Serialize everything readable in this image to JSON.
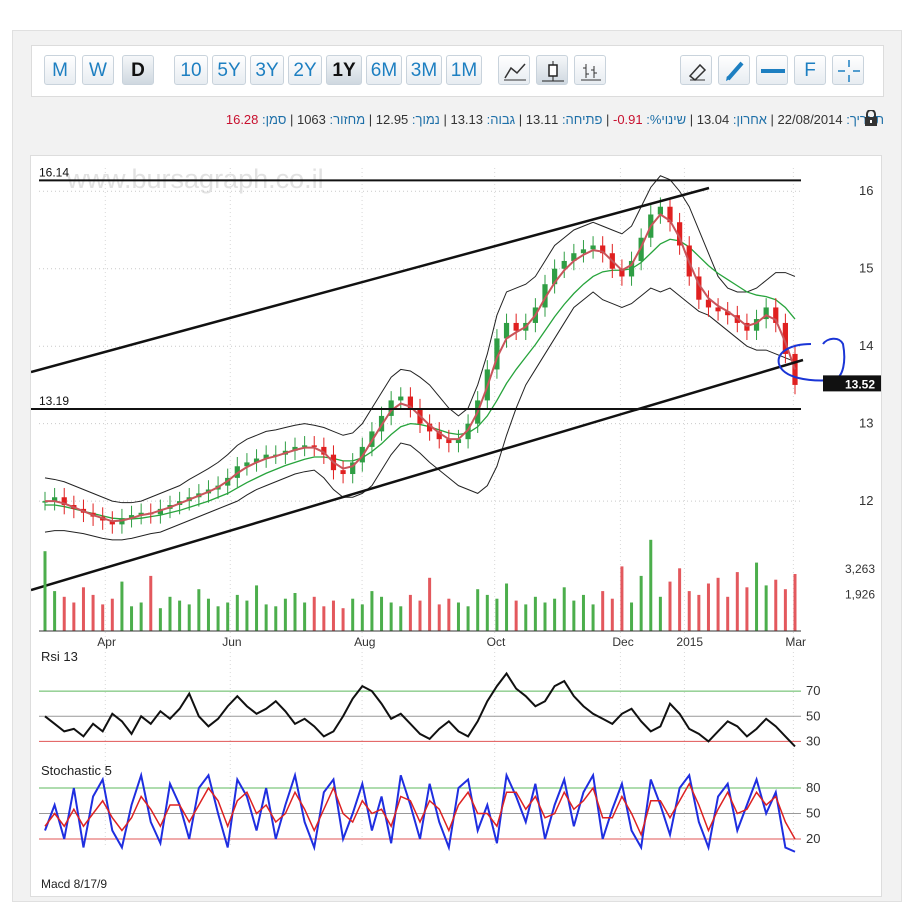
{
  "toolbar": {
    "period_buttons": [
      "M",
      "W",
      "D"
    ],
    "range_buttons": [
      "10",
      "5Y",
      "3Y",
      "2Y",
      "1Y",
      "6M",
      "3M",
      "1M"
    ],
    "active_period": "D",
    "active_range": "1Y",
    "tool_f_label": "F"
  },
  "info": {
    "symbol_label": "סמן:",
    "symbol_value": "16.28",
    "volume_label": "מחזור:",
    "volume_value": "1063",
    "low_label": "נמוך:",
    "low_value": "12.95",
    "high_label": "גבוה:",
    "high_value": "13.13",
    "open_label": "פתיחה:",
    "open_value": "13.11",
    "change_label": "שינוי%:",
    "change_value": "-0.91",
    "last_label": "אחרון:",
    "last_value": "13.04",
    "date_label": "תאריך:",
    "date_value": "22/08/2014"
  },
  "chart_data": {
    "type": "line",
    "watermark": "www.bursagraph.co.il",
    "price_panel": {
      "y_ticks": [
        "16",
        "15",
        "14",
        "13",
        "12"
      ],
      "ylim": [
        11.55,
        16.3
      ],
      "level_labels": [
        "16.14",
        "13.19"
      ],
      "levels": [
        16.14,
        13.19
      ],
      "current_price_label": "13.52",
      "current_price": 13.52,
      "x_labels": [
        "Apr",
        "Jun",
        "Aug",
        "Oct",
        "Dec",
        "2015",
        "Mar"
      ],
      "close": [
        12.0,
        12.05,
        11.95,
        11.9,
        11.85,
        11.8,
        11.75,
        11.7,
        11.78,
        11.82,
        11.85,
        11.83,
        11.9,
        11.95,
        12.0,
        12.05,
        12.1,
        12.15,
        12.2,
        12.3,
        12.45,
        12.5,
        12.55,
        12.6,
        12.6,
        12.65,
        12.7,
        12.72,
        12.7,
        12.6,
        12.4,
        12.35,
        12.5,
        12.7,
        12.9,
        13.1,
        13.3,
        13.35,
        13.2,
        13.0,
        12.9,
        12.8,
        12.75,
        12.8,
        13.0,
        13.3,
        13.7,
        14.1,
        14.3,
        14.2,
        14.3,
        14.5,
        14.8,
        15.0,
        15.1,
        15.2,
        15.25,
        15.3,
        15.2,
        15.0,
        14.9,
        15.1,
        15.4,
        15.7,
        15.8,
        15.6,
        15.3,
        14.9,
        14.6,
        14.5,
        14.45,
        14.4,
        14.3,
        14.2,
        14.35,
        14.5,
        14.3,
        13.9,
        13.5
      ],
      "ma_fast": [
        12.0,
        12.0,
        11.97,
        11.92,
        11.87,
        11.82,
        11.78,
        11.74,
        11.75,
        11.78,
        11.82,
        11.84,
        11.88,
        11.92,
        11.97,
        12.02,
        12.07,
        12.12,
        12.18,
        12.26,
        12.36,
        12.44,
        12.5,
        12.55,
        12.58,
        12.62,
        12.66,
        12.69,
        12.69,
        12.63,
        12.5,
        12.42,
        12.45,
        12.58,
        12.78,
        12.98,
        13.17,
        13.26,
        13.22,
        13.1,
        12.98,
        12.88,
        12.8,
        12.8,
        12.92,
        13.15,
        13.48,
        13.85,
        14.1,
        14.18,
        14.25,
        14.4,
        14.62,
        14.82,
        14.98,
        15.1,
        15.18,
        15.24,
        15.22,
        15.1,
        14.98,
        15.05,
        15.28,
        15.55,
        15.7,
        15.62,
        15.4,
        15.08,
        14.8,
        14.62,
        14.52,
        14.45,
        14.36,
        14.26,
        14.3,
        14.4,
        14.34,
        14.05,
        13.7
      ],
      "ma_slow": [
        11.95,
        11.95,
        11.93,
        11.9,
        11.87,
        11.84,
        11.81,
        11.78,
        11.77,
        11.77,
        11.78,
        11.8,
        11.82,
        11.85,
        11.88,
        11.92,
        11.96,
        12.0,
        12.05,
        12.1,
        12.17,
        12.24,
        12.3,
        12.36,
        12.41,
        12.46,
        12.5,
        12.54,
        12.57,
        12.57,
        12.55,
        12.52,
        12.52,
        12.56,
        12.64,
        12.74,
        12.86,
        12.96,
        13.0,
        12.99,
        12.96,
        12.92,
        12.88,
        12.86,
        12.88,
        12.96,
        13.1,
        13.3,
        13.52,
        13.7,
        13.86,
        14.02,
        14.2,
        14.38,
        14.54,
        14.68,
        14.8,
        14.9,
        14.96,
        14.98,
        14.98,
        15.0,
        15.08,
        15.2,
        15.32,
        15.38,
        15.36,
        15.28,
        15.16,
        15.04,
        14.94,
        14.86,
        14.78,
        14.7,
        14.66,
        14.64,
        14.6,
        14.5,
        14.35
      ],
      "bb_upper": [
        12.3,
        12.28,
        12.25,
        12.2,
        12.15,
        12.1,
        12.05,
        12.0,
        11.98,
        11.98,
        12.0,
        12.05,
        12.1,
        12.15,
        12.2,
        12.28,
        12.35,
        12.42,
        12.5,
        12.6,
        12.72,
        12.8,
        12.85,
        12.9,
        12.92,
        12.95,
        12.98,
        13.0,
        12.98,
        12.95,
        12.9,
        12.85,
        12.88,
        13.0,
        13.2,
        13.4,
        13.6,
        13.7,
        13.68,
        13.6,
        13.5,
        13.35,
        13.2,
        13.1,
        13.2,
        13.5,
        13.9,
        14.4,
        14.7,
        14.75,
        14.8,
        14.9,
        15.1,
        15.3,
        15.4,
        15.5,
        15.55,
        15.6,
        15.55,
        15.5,
        15.45,
        15.55,
        15.8,
        16.05,
        16.2,
        16.15,
        16.0,
        15.8,
        15.5,
        15.2,
        14.9,
        14.75,
        14.7,
        14.7,
        14.75,
        14.85,
        14.95,
        14.95,
        14.9
      ],
      "bb_lower": [
        11.6,
        11.62,
        11.62,
        11.6,
        11.58,
        11.55,
        11.52,
        11.5,
        11.5,
        11.52,
        11.55,
        11.58,
        11.6,
        11.65,
        11.7,
        11.75,
        11.8,
        11.85,
        11.9,
        11.95,
        12.0,
        12.08,
        12.15,
        12.2,
        12.25,
        12.3,
        12.35,
        12.38,
        12.4,
        12.3,
        12.15,
        12.05,
        12.05,
        12.1,
        12.2,
        12.4,
        12.6,
        12.75,
        12.72,
        12.62,
        12.5,
        12.4,
        12.3,
        12.2,
        12.15,
        12.1,
        12.2,
        12.45,
        12.85,
        13.2,
        13.5,
        13.7,
        13.9,
        14.1,
        14.3,
        14.5,
        14.6,
        14.7,
        14.6,
        14.55,
        14.5,
        14.55,
        14.65,
        14.75,
        14.7,
        14.75,
        14.65,
        14.55,
        14.45,
        14.4,
        14.3,
        14.2,
        14.1,
        14.0,
        13.95,
        13.95,
        13.9,
        13.85,
        13.8
      ]
    },
    "volume_panel": {
      "y_ticks": [
        "3,263",
        "1,926"
      ],
      "ticks_values": [
        3263,
        1926
      ],
      "max": 5000,
      "values": [
        4200,
        2100,
        1800,
        1500,
        2300,
        1900,
        1400,
        1700,
        2600,
        1300,
        1500,
        2900,
        1200,
        1800,
        1600,
        1400,
        2200,
        1700,
        1300,
        1500,
        1900,
        1600,
        2400,
        1400,
        1300,
        1700,
        2000,
        1500,
        1800,
        1300,
        1600,
        1200,
        1700,
        1400,
        2100,
        1800,
        1500,
        1300,
        1900,
        1600,
        2800,
        1400,
        1700,
        1500,
        1300,
        2200,
        1900,
        1700,
        2500,
        1600,
        1400,
        1800,
        1500,
        1700,
        2300,
        1600,
        1900,
        1400,
        2100,
        1700,
        3400,
        1500,
        2900,
        4800,
        1800,
        2600,
        3300,
        2100,
        1900,
        2500,
        2800,
        1800,
        3100,
        2300,
        3600,
        2400,
        2700,
        2200,
        3000
      ]
    },
    "rsi_panel": {
      "label": "Rsi 13",
      "y_ticks": [
        "70",
        "50",
        "30"
      ],
      "levels": [
        70,
        50,
        30
      ],
      "ylim": [
        20,
        90
      ],
      "values": [
        50,
        44,
        38,
        40,
        34,
        44,
        38,
        52,
        46,
        36,
        50,
        44,
        54,
        48,
        56,
        68,
        50,
        42,
        48,
        58,
        66,
        58,
        52,
        56,
        62,
        54,
        44,
        48,
        42,
        34,
        38,
        50,
        64,
        74,
        70,
        60,
        48,
        52,
        44,
        36,
        32,
        40,
        46,
        38,
        34,
        46,
        62,
        74,
        84,
        72,
        66,
        58,
        62,
        74,
        78,
        66,
        58,
        52,
        48,
        44,
        52,
        56,
        46,
        38,
        42,
        60,
        52,
        40,
        36,
        30,
        38,
        46,
        42,
        34,
        40,
        48,
        42,
        34,
        26
      ]
    },
    "stoch_panel": {
      "label": "Stochastic 5",
      "y_ticks": [
        "80",
        "50",
        "20"
      ],
      "levels": [
        80,
        50,
        20
      ],
      "ylim": [
        0,
        100
      ],
      "k": [
        30,
        60,
        20,
        80,
        10,
        70,
        90,
        30,
        10,
        60,
        95,
        40,
        15,
        85,
        60,
        20,
        80,
        95,
        50,
        10,
        90,
        70,
        30,
        80,
        20,
        60,
        95,
        40,
        10,
        75,
        90,
        20,
        50,
        85,
        30,
        70,
        15,
        95,
        60,
        20,
        85,
        40,
        10,
        80,
        90,
        30,
        60,
        15,
        95,
        70,
        40,
        85,
        20,
        60,
        90,
        35,
        75,
        95,
        20,
        55,
        85,
        30,
        10,
        90,
        60,
        25,
        80,
        95,
        40,
        10,
        70,
        85,
        30,
        60,
        90,
        50,
        75,
        10,
        5
      ],
      "d": [
        35,
        50,
        35,
        55,
        35,
        50,
        65,
        45,
        30,
        45,
        70,
        55,
        35,
        60,
        60,
        40,
        60,
        80,
        65,
        35,
        65,
        75,
        50,
        60,
        40,
        50,
        75,
        55,
        30,
        55,
        80,
        50,
        40,
        65,
        50,
        55,
        35,
        70,
        65,
        40,
        65,
        55,
        30,
        60,
        75,
        50,
        50,
        35,
        75,
        75,
        55,
        70,
        45,
        50,
        75,
        55,
        65,
        80,
        45,
        45,
        70,
        50,
        25,
        65,
        65,
        45,
        65,
        85,
        60,
        30,
        55,
        75,
        50,
        55,
        75,
        60,
        70,
        40,
        20
      ]
    },
    "macd_label": "Macd 8/17/9"
  }
}
